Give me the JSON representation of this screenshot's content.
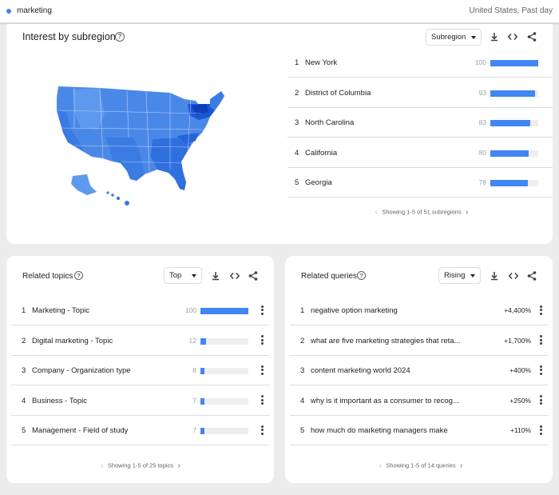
{
  "search": {
    "term": "marketing",
    "scope": "United States, Past day"
  },
  "colors": {
    "accent": "#4285f4",
    "map_light": "#5a96ec",
    "map_mid": "#3b7ce3",
    "map_dark": "#1a56d6"
  },
  "subregion": {
    "title": "Interest by subregion",
    "selector": "Subregion",
    "rows": [
      {
        "rank": "1",
        "name": "New York",
        "value": "100",
        "fraction": 1.0
      },
      {
        "rank": "2",
        "name": "District of Columbia",
        "value": "93",
        "fraction": 0.93
      },
      {
        "rank": "3",
        "name": "North Carolina",
        "value": "83",
        "fraction": 0.83
      },
      {
        "rank": "4",
        "name": "California",
        "value": "80",
        "fraction": 0.8
      },
      {
        "rank": "5",
        "name": "Georgia",
        "value": "78",
        "fraction": 0.78
      }
    ],
    "pager": "Showing 1-5 of 51 subregions"
  },
  "topics": {
    "title": "Related topics",
    "selector": "Top",
    "rows": [
      {
        "rank": "1",
        "name": "Marketing - Topic",
        "value": "100",
        "fraction": 1.0
      },
      {
        "rank": "2",
        "name": "Digital marketing - Topic",
        "value": "12",
        "fraction": 0.12
      },
      {
        "rank": "3",
        "name": "Company - Organization type",
        "value": "8",
        "fraction": 0.08
      },
      {
        "rank": "4",
        "name": "Business - Topic",
        "value": "7",
        "fraction": 0.07
      },
      {
        "rank": "5",
        "name": "Management - Field of study",
        "value": "7",
        "fraction": 0.07
      }
    ],
    "pager": "Showing 1-5 of 25 topics"
  },
  "queries": {
    "title": "Related queries",
    "selector": "Rising",
    "rows": [
      {
        "rank": "1",
        "name": "negative option marketing",
        "value": "+4,400%"
      },
      {
        "rank": "2",
        "name": "what are five marketing strategies that reta...",
        "value": "+1,700%"
      },
      {
        "rank": "3",
        "name": "content marketing world 2024",
        "value": "+400%"
      },
      {
        "rank": "4",
        "name": "why is it important as a consumer to recog...",
        "value": "+250%"
      },
      {
        "rank": "5",
        "name": "how much do marketing managers make",
        "value": "+110%"
      }
    ],
    "pager": "Showing 1-5 of 14 queries"
  }
}
